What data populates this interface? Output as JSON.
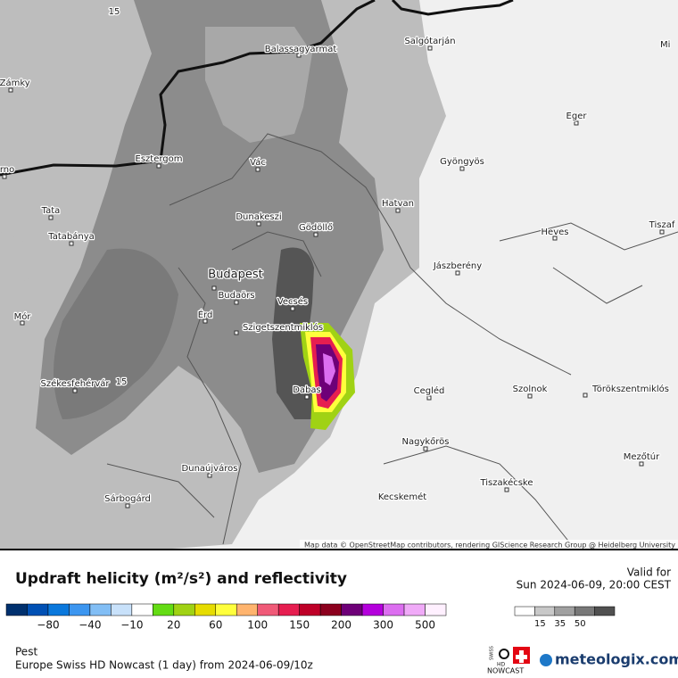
{
  "map": {
    "labels": [
      "15",
      "Balassagyarmat",
      "Salgótarján",
      "Mi",
      "é Zámky",
      "Eger",
      "Esztergom",
      "Vác",
      "Gyöngyös",
      "árno",
      "Tata",
      "Hatvan",
      "Dunakeszi",
      "Gödöllő",
      "Heves",
      "Tiszaf",
      "Tatabánya",
      "Jászberény",
      "Budapest",
      "Budaörs",
      "Vecsés",
      "Mór",
      "Érd",
      "Szigetszentmiklós",
      "Székesfehérvár",
      "15",
      "Dabas",
      "Cegléd",
      "Szolnok",
      "Törökszentmiklós",
      "Nagykőrös",
      "Mezőtúr",
      "Dunaújváros",
      "Sárbogárd",
      "Tiszakécske",
      "Kecskemét"
    ],
    "attribution": "Map data © OpenStreetMap contributors, rendering GIScience Research Group @ Heidelberg University"
  },
  "panel": {
    "title": "Updraft helicity (m²/s²) and reflectivity",
    "valid_label": "Valid for",
    "valid_time": "Sun 2024-06-09, 20:00 CEST",
    "helicity_ticks": [
      "−80",
      "−40",
      "−10",
      "20",
      "60",
      "100",
      "150",
      "200",
      "300",
      "500"
    ],
    "reflectivity_ticks": [
      "15",
      "35",
      "50"
    ],
    "region": "Pest",
    "model": "Europe Swiss HD Nowcast (1 day) from  2024-06-09/10z",
    "logo_small": [
      "SWISS",
      "HD",
      "NOWCAST"
    ],
    "brand": "meteologix.com"
  }
}
